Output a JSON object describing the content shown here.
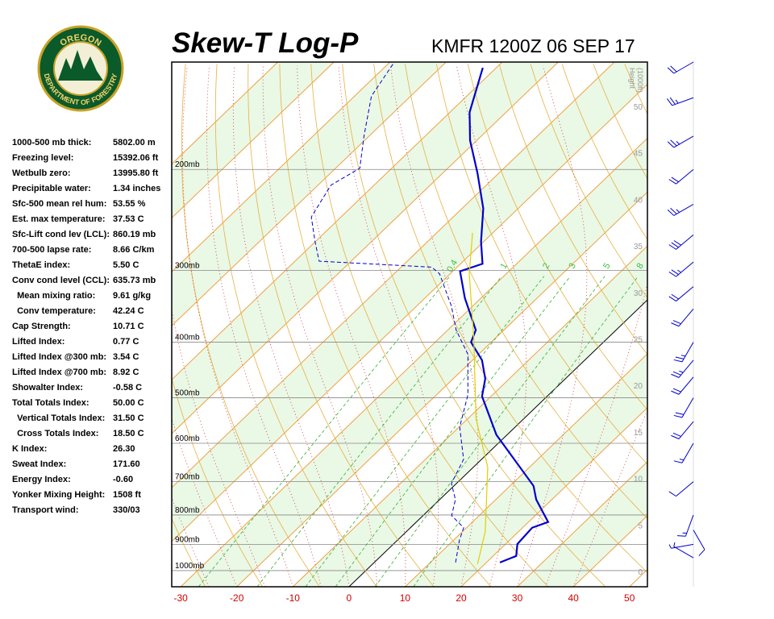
{
  "chart_data": {
    "type": "skewt",
    "title": "Skew-T Log-P",
    "subtitle": "KMFR 1200Z 06 SEP 17",
    "logo": {
      "top": "OREGON",
      "bottom": "DEPARTMENT OF FORESTRY"
    },
    "xlim": [
      -31.6,
      53.2
    ],
    "ylim": [
      1067,
      130
    ],
    "xticks": [
      -30,
      -20,
      -10,
      0,
      10,
      20,
      30,
      40,
      50
    ],
    "isotherms": [
      -110,
      -100,
      -90,
      -80,
      -70,
      -60,
      -50,
      -40,
      -30,
      -20,
      -10,
      0,
      10,
      20,
      30,
      40,
      50
    ],
    "yticks": [
      {
        "value": 1000,
        "label": "1000mb"
      },
      {
        "value": 900,
        "label": "900mb"
      },
      {
        "value": 800,
        "label": "800mb"
      },
      {
        "value": 700,
        "label": "700mb"
      },
      {
        "value": 600,
        "label": "600mb"
      },
      {
        "value": 500,
        "label": "500mb"
      },
      {
        "value": 400,
        "label": "400mb"
      },
      {
        "value": 300,
        "label": "300mb"
      },
      {
        "value": 200,
        "label": "200mb"
      }
    ],
    "mixing_ratio": [
      0.4,
      1,
      2,
      3,
      5,
      8
    ],
    "height_title": [
      "Height",
      "(1000ft)"
    ],
    "height_ticks": [
      0,
      5,
      10,
      15,
      20,
      25,
      30,
      35,
      40,
      45,
      50
    ],
    "series": [
      {
        "color": "#0000cc",
        "pressure": [
          968,
          943,
          899,
          842,
          823,
          752,
          712,
          580,
          497,
          463,
          430,
          400,
          381,
          335,
          301,
          292,
          267,
          234,
          203,
          178,
          159,
          133
        ],
        "values": [
          22.4,
          24.1,
          22.1,
          21.7,
          23.5,
          17.2,
          14.2,
          -1.9,
          -11.6,
          -14.3,
          -18.3,
          -23.6,
          -25.0,
          -32.9,
          -38.7,
          -36.1,
          -40.5,
          -46.2,
          -53.8,
          -61.2,
          -66.5,
          -72.4
        ]
      },
      {
        "color": "#0000cc",
        "dashed": true,
        "pressure": [
          968,
          884,
          842,
          802,
          752,
          705,
          640,
          562,
          494,
          420,
          381,
          346,
          304,
          296,
          289,
          267,
          242,
          213,
          199,
          175,
          149,
          131
        ],
        "values": [
          14.5,
          11.0,
          9.5,
          5.1,
          2.8,
          -0.9,
          -3.2,
          -9.9,
          -14.4,
          -21.9,
          -28.5,
          -33.8,
          -41.9,
          -44.5,
          -65.7,
          -70.1,
          -75.3,
          -77.7,
          -75.7,
          -80.9,
          -87.0,
          -89.1
        ]
      },
      {
        "color": "#e0d000",
        "pressure": [
          974,
          856,
          661,
          544,
          394,
          304,
          258
        ],
        "values": [
          18.7,
          14.1,
          2.6,
          -8.5,
          -23.8,
          -36.6,
          -43.6
        ]
      }
    ],
    "winds": {
      "pressure": [
        130,
        150,
        175,
        200,
        230,
        260,
        290,
        320,
        350,
        400,
        430,
        460,
        500,
        550,
        600,
        700,
        800,
        850,
        900,
        950
      ],
      "direction": [
        240,
        250,
        240,
        230,
        240,
        230,
        230,
        230,
        220,
        210,
        220,
        220,
        210,
        220,
        210,
        230,
        200,
        150,
        260,
        300
      ],
      "speed": [
        20,
        25,
        25,
        20,
        25,
        30,
        25,
        20,
        20,
        25,
        25,
        20,
        20,
        20,
        15,
        10,
        15,
        10,
        5,
        5
      ]
    },
    "stats": [
      [
        "1000-500 mb thick:",
        "5802.00 m"
      ],
      [
        "Freezing level:",
        "15392.06 ft"
      ],
      [
        "Wetbulb zero:",
        "13995.80 ft"
      ],
      [
        "Precipitable water:",
        "1.34 inches"
      ],
      [
        "Sfc-500 mean rel hum:",
        "53.55 %"
      ],
      [
        "Est. max temperature:",
        "37.53 C"
      ],
      [
        "Sfc-Lift cond lev (LCL):",
        "860.19 mb"
      ],
      [
        "700-500 lapse rate:",
        "8.66 C/km"
      ],
      [
        "ThetaE index:",
        "5.50 C"
      ],
      [
        "Conv cond level (CCL):",
        "635.73 mb"
      ],
      [
        "  Mean mixing ratio:",
        "9.61 g/kg"
      ],
      [
        "  Conv temperature:",
        "42.24 C"
      ],
      [
        "Cap Strength:",
        "10.71 C"
      ],
      [
        "Lifted Index:",
        "0.77 C"
      ],
      [
        "Lifted Index @300 mb:",
        "3.54 C"
      ],
      [
        "Lifted Index @700 mb:",
        "8.92 C"
      ],
      [
        "Showalter Index:",
        "-0.58 C"
      ],
      [
        "Total Totals Index:",
        "50.00 C"
      ],
      [
        "  Vertical Totals Index:",
        "31.50 C"
      ],
      [
        "  Cross Totals Index:",
        "18.50 C"
      ],
      [
        "K Index:",
        "26.30"
      ],
      [
        "Sweat Index:",
        "171.60"
      ],
      [
        "Energy Index:",
        "-0.60"
      ],
      [
        "Yonker Mixing Height:",
        "1508 ft"
      ],
      [
        "Transport wind:",
        "330/03"
      ]
    ]
  }
}
